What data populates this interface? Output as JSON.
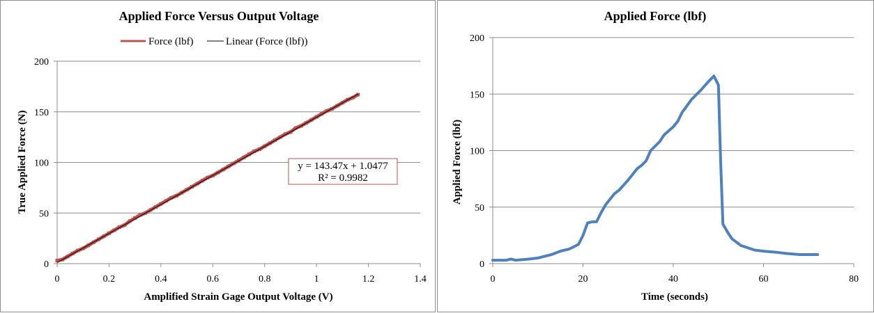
{
  "chart_data": [
    {
      "type": "scatter",
      "title": "Applied Force Versus Output Voltage",
      "xlabel": "Amplified Strain Gage Output Voltage (V)",
      "ylabel": "True Applied Force (N)",
      "xlim": [
        0,
        1.4
      ],
      "ylim": [
        0,
        200
      ],
      "x_ticks": [
        "0",
        "0.2",
        "0.4",
        "0.6",
        "0.8",
        "1",
        "1.2",
        "1.4"
      ],
      "y_ticks": [
        "0",
        "50",
        "100",
        "150",
        "200"
      ],
      "grid": true,
      "legend_position": "top",
      "series": [
        {
          "name": "Force (lbf)",
          "color": "#c0504d",
          "style": "markers",
          "x": [
            0.0,
            0.02,
            0.04,
            0.06,
            0.08,
            0.1,
            0.12,
            0.14,
            0.16,
            0.18,
            0.2,
            0.22,
            0.24,
            0.26,
            0.28,
            0.3,
            0.32,
            0.34,
            0.36,
            0.38,
            0.4,
            0.42,
            0.44,
            0.46,
            0.48,
            0.5,
            0.52,
            0.54,
            0.56,
            0.58,
            0.6,
            0.62,
            0.64,
            0.66,
            0.68,
            0.7,
            0.72,
            0.74,
            0.76,
            0.78,
            0.8,
            0.82,
            0.84,
            0.86,
            0.88,
            0.9,
            0.92,
            0.94,
            0.96,
            0.98,
            1.0,
            1.02,
            1.04,
            1.06,
            1.08,
            1.1,
            1.12,
            1.14,
            1.16
          ],
          "y": [
            3,
            4,
            7,
            10,
            13,
            15,
            18,
            21,
            24,
            27,
            30,
            33,
            36,
            38,
            42,
            45,
            48,
            50,
            53,
            56,
            59,
            62,
            65,
            67,
            70,
            73,
            76,
            79,
            82,
            85,
            87,
            90,
            93,
            96,
            99,
            102,
            105,
            108,
            111,
            113,
            116,
            119,
            122,
            125,
            128,
            130,
            134,
            136,
            139,
            142,
            145,
            148,
            151,
            153,
            156,
            159,
            162,
            164,
            167
          ]
        },
        {
          "name": "Linear (Force (lbf))",
          "color": "#000000",
          "style": "line",
          "slope": 143.47,
          "intercept": 1.0477
        }
      ],
      "annotations": {
        "equation": "y = 143.47x + 1.0477",
        "r_squared": "R² = 0.9982"
      }
    },
    {
      "type": "line",
      "title": "Applied Force (lbf)",
      "xlabel": "Time (seconds)",
      "ylabel": "Applied Force (lbf)",
      "xlim": [
        0,
        80
      ],
      "ylim": [
        0,
        200
      ],
      "x_ticks": [
        "0",
        "20",
        "40",
        "60",
        "80"
      ],
      "y_ticks": [
        "0",
        "50",
        "100",
        "150",
        "200"
      ],
      "grid": true,
      "series": [
        {
          "color": "#4f81bd",
          "x": [
            0,
            3,
            4,
            5,
            8,
            10,
            13,
            15,
            17,
            19,
            20,
            21,
            22,
            23,
            24,
            25,
            26,
            27,
            28,
            30,
            32,
            33,
            34,
            35,
            37,
            38,
            40,
            41,
            42,
            44,
            46,
            48,
            49,
            50,
            50.5,
            51,
            52,
            53,
            55,
            58,
            60,
            63,
            65,
            68,
            70,
            72
          ],
          "y": [
            3,
            3,
            4,
            3,
            4,
            5,
            8,
            11,
            13,
            17,
            25,
            36,
            37,
            37,
            45,
            52,
            57,
            62,
            65,
            74,
            84,
            87,
            91,
            100,
            108,
            114,
            121,
            126,
            134,
            145,
            153,
            162,
            166,
            158,
            90,
            35,
            28,
            22,
            16,
            12,
            11,
            10,
            9,
            8,
            8,
            8
          ]
        }
      ]
    }
  ]
}
